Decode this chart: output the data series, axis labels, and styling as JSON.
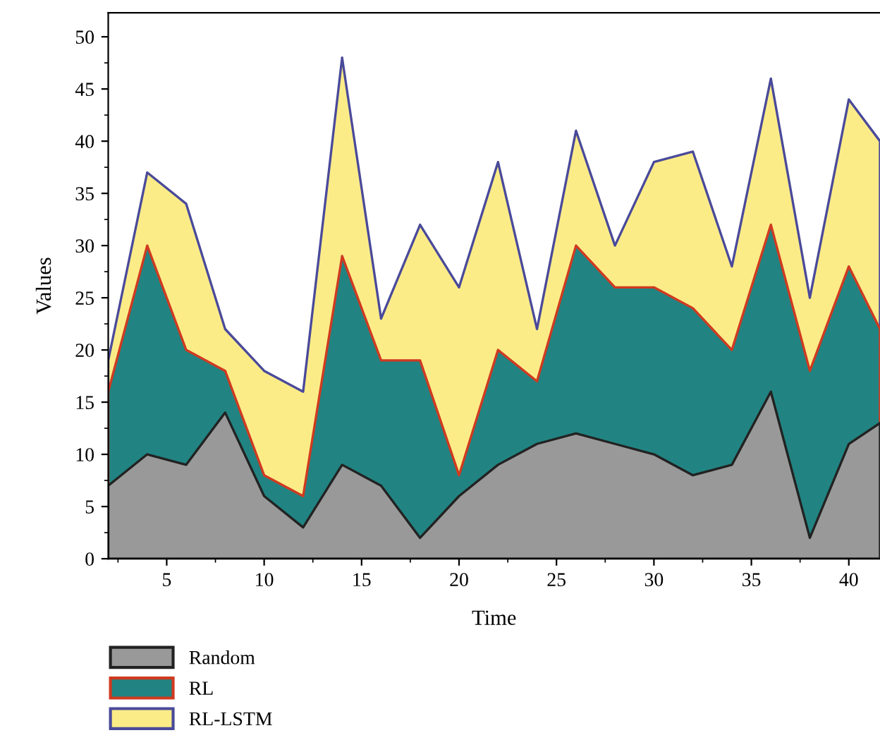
{
  "chart_data": {
    "type": "area",
    "xlabel": "Time",
    "ylabel": "Values",
    "x": [
      2,
      4,
      6,
      8,
      10,
      12,
      14,
      16,
      18,
      20,
      22,
      24,
      26,
      28,
      30,
      32,
      34,
      36,
      38,
      40,
      41.6
    ],
    "series": [
      {
        "name": "Random",
        "color": "#999999",
        "values": [
          7,
          10,
          9,
          14,
          6,
          3,
          9,
          7,
          2,
          6,
          9,
          11,
          12,
          11,
          10,
          8,
          9,
          16,
          2,
          11,
          13
        ]
      },
      {
        "name": "RL",
        "color": "#218482",
        "values": [
          16,
          30,
          20,
          18,
          8,
          6,
          29,
          19,
          19,
          8,
          20,
          17,
          30,
          26,
          26,
          24,
          20,
          32,
          18,
          28,
          22
        ]
      },
      {
        "name": "RL-LSTM",
        "color": "#fcec88",
        "values": [
          19,
          37,
          34,
          22,
          18,
          16,
          48,
          23,
          32,
          26,
          38,
          22,
          41,
          30,
          38,
          39,
          28,
          46,
          25,
          44,
          40
        ]
      }
    ],
    "xlim": [
      2,
      41.6
    ],
    "xticks": [
      5,
      10,
      15,
      20,
      25,
      30,
      35,
      40
    ],
    "ylim": [
      0,
      52.3
    ],
    "yticks": [
      0,
      5,
      10,
      15,
      20,
      25,
      30,
      35,
      40,
      45,
      50
    ],
    "grid": false,
    "legend": "bottom left"
  }
}
